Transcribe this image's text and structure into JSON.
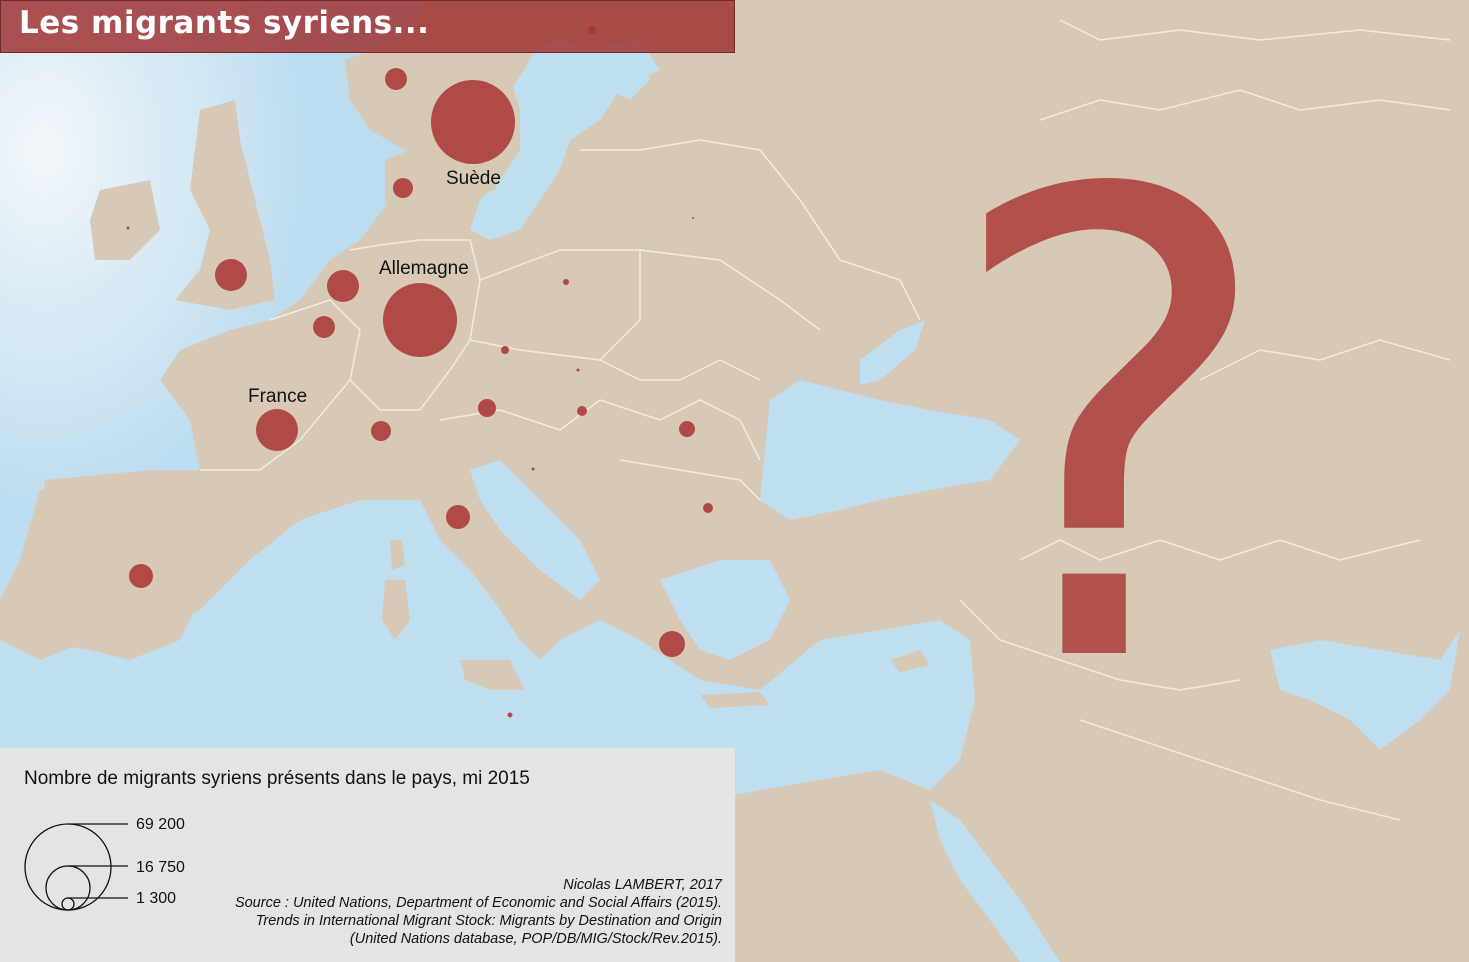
{
  "title": "Les migrants syriens...",
  "colors": {
    "land": "#d8c9b6",
    "sea": "#bfdff0",
    "sea_light": "#e8f1f7",
    "border": "#f1ebe2",
    "symbol": "#b04a46",
    "legend_bg": "#e6e4e3"
  },
  "country_labels": {
    "sweden": "Suède",
    "germany": "Allemagne",
    "france": "France"
  },
  "question_mark": "?",
  "legend": {
    "title": "Nombre de migrants syriens présents dans le pays, mi 2015",
    "values": [
      "69 200",
      "16 750",
      "1 300"
    ]
  },
  "credits": {
    "author": "Nicolas LAMBERT, 2017",
    "line1": "Source : United Nations, Department of Economic and Social Affairs (2015).",
    "line2": "Trends in International Migrant Stock: Migrants by Destination and Origin",
    "line3": "(United Nations database, POP/DB/MIG/Stock/Rev.2015)."
  }
}
